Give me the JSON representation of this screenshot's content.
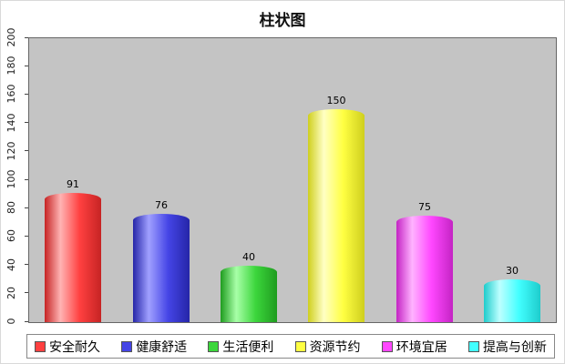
{
  "chart_data": {
    "type": "bar",
    "title": "柱状图",
    "categories": [
      "安全耐久",
      "健康舒适",
      "生活便利",
      "资源节约",
      "环境宜居",
      "提高与创新"
    ],
    "values": [
      91,
      76,
      40,
      150,
      75,
      30
    ],
    "colors": [
      {
        "main": "#ff4040",
        "light": "#ffb3b3",
        "dark": "#c62424"
      },
      {
        "main": "#4545e6",
        "light": "#a0a0ff",
        "dark": "#2525a8"
      },
      {
        "main": "#3cd63c",
        "light": "#a8ffa8",
        "dark": "#1f9c1f"
      },
      {
        "main": "#ffff42",
        "light": "#ffffc4",
        "dark": "#cfcf1e"
      },
      {
        "main": "#ff47ff",
        "light": "#ffb3ff",
        "dark": "#c424c4"
      },
      {
        "main": "#42ffff",
        "light": "#bdffff",
        "dark": "#1ecccc"
      }
    ],
    "ylim": [
      0,
      200
    ],
    "ytick_step": 20,
    "legend_position": "bottom",
    "plot_background": "#c4c4c4",
    "grid": "off"
  }
}
